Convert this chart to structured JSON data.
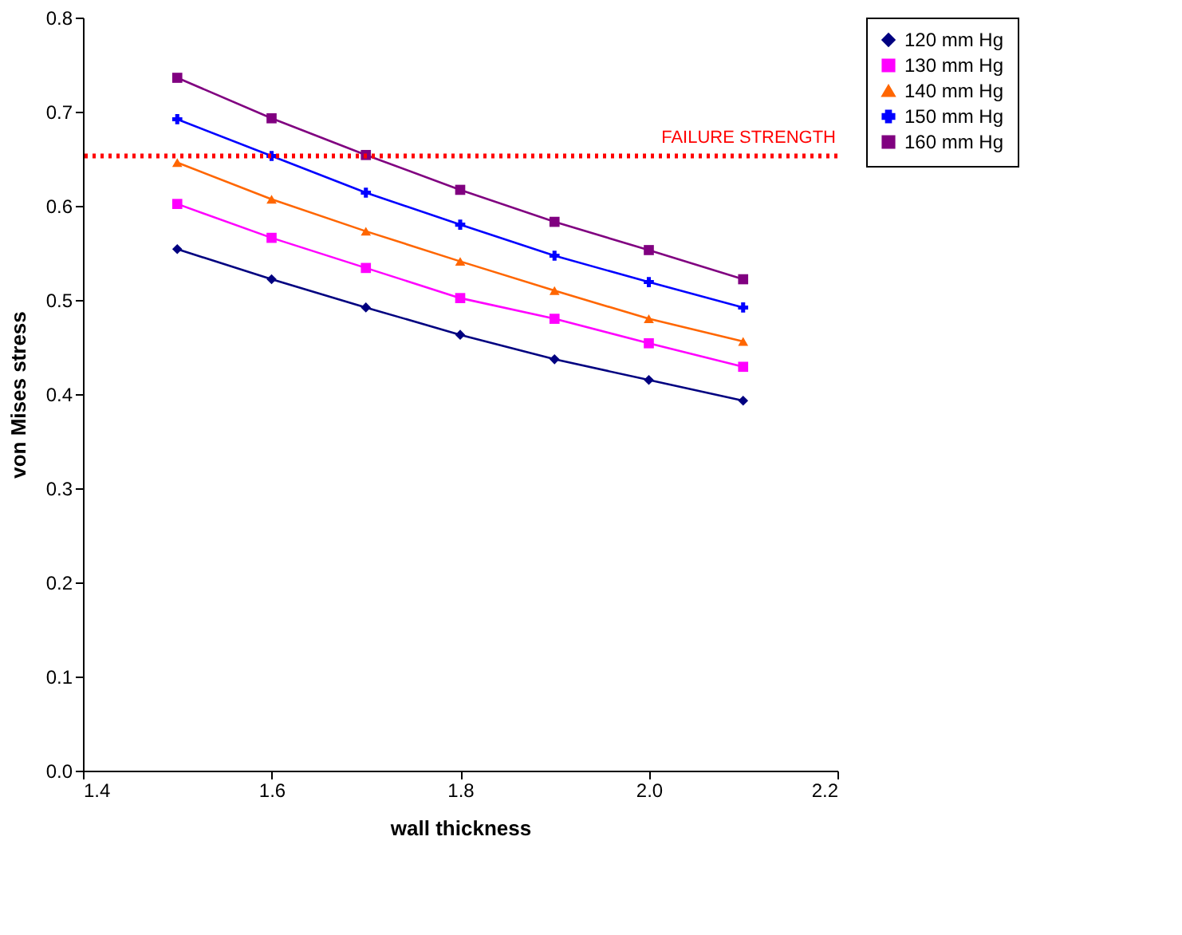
{
  "chart_data": {
    "type": "line",
    "xlabel": "wall thickness",
    "ylabel": "von Mises stress",
    "x": [
      1.5,
      1.6,
      1.7,
      1.8,
      1.9,
      2.0,
      2.1
    ],
    "xlim": [
      1.4,
      2.2
    ],
    "xticks": [
      {
        "value": 1.4,
        "label": "1.4"
      },
      {
        "value": 1.6,
        "label": "1.6"
      },
      {
        "value": 1.8,
        "label": "1.8"
      },
      {
        "value": 2.0,
        "label": "2.0"
      },
      {
        "value": 2.2,
        "label": "2.2"
      }
    ],
    "ylim": [
      0,
      0.8
    ],
    "yticks": [
      {
        "value": 0,
        "label": "0.0"
      },
      0.1,
      0.2,
      0.3,
      0.4,
      0.5,
      0.6,
      0.7,
      0.8
    ],
    "grid": false,
    "legend": "right",
    "line_style": "solid",
    "series": [
      {
        "name": "120 mm Hg",
        "color": "#000080",
        "marker": "diamond",
        "values": [
          0.554,
          0.522,
          0.492,
          0.463,
          0.437,
          0.415,
          0.393
        ]
      },
      {
        "name": "130 mm Hg",
        "color": "#ff00ff",
        "marker": "square",
        "values": [
          0.602,
          0.566,
          0.534,
          0.502,
          0.48,
          0.454,
          0.429
        ]
      },
      {
        "name": "140 mm Hg",
        "color": "#ff6600",
        "marker": "triangle",
        "values": [
          0.646,
          0.607,
          0.573,
          0.541,
          0.51,
          0.48,
          0.456
        ]
      },
      {
        "name": "150 mm Hg",
        "color": "#0000ff",
        "marker": "cross",
        "values": [
          0.692,
          0.653,
          0.614,
          0.58,
          0.547,
          0.519,
          0.492
        ]
      },
      {
        "name": "160 mm Hg",
        "color": "#800080",
        "marker": "square",
        "values": [
          0.736,
          0.693,
          0.654,
          0.617,
          0.583,
          0.553,
          0.522
        ]
      }
    ],
    "ref_lines": [
      {
        "axis": "y",
        "value": 0.653,
        "label": "FAILURE STRENGTH",
        "color": "#ff0000",
        "line_style": "dotted"
      }
    ]
  }
}
